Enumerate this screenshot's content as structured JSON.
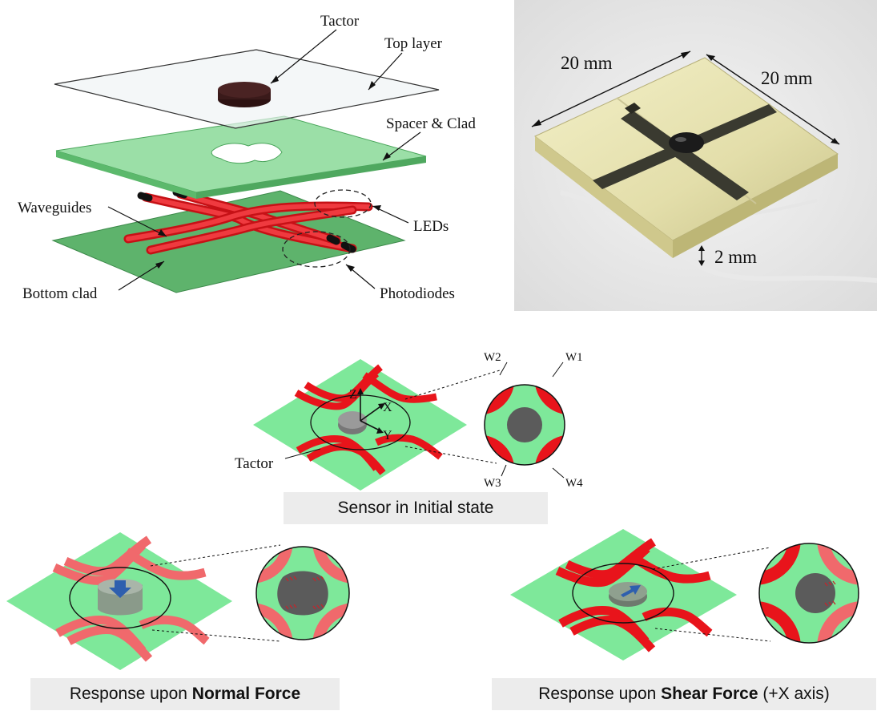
{
  "exploded_view": {
    "labels": {
      "tactor": "Tactor",
      "top_layer": "Top layer",
      "spacer_clad": "Spacer & Clad",
      "waveguides": "Waveguides",
      "leds": "LEDs",
      "bottom_clad": "Bottom clad",
      "photodiodes": "Photodiodes"
    }
  },
  "photo": {
    "dim_width": "20 mm",
    "dim_length": "20 mm",
    "dim_height": "2 mm"
  },
  "initial_state": {
    "axis_z": "Z",
    "axis_x": "X",
    "axis_y": "Y",
    "tactor_label": "Tactor",
    "waveguides": [
      "W1",
      "W2",
      "W3",
      "W4"
    ],
    "caption": "Sensor in Initial state"
  },
  "normal_force": {
    "caption_prefix": "Response upon ",
    "caption_bold": "Normal Force"
  },
  "shear_force": {
    "caption_prefix": "Response upon ",
    "caption_bold": "Shear Force",
    "caption_suffix": " (+X axis)"
  },
  "colors": {
    "waveguide_red": "#e8141b",
    "waveguide_light": "#f0696c",
    "clad_green": "#7ee89a",
    "sheet_green": "#6fc97d",
    "tactor_gray": "#5b5b5b",
    "tactor_dark": "#3a1a1a",
    "arrow_blue": "#2e5fae"
  }
}
